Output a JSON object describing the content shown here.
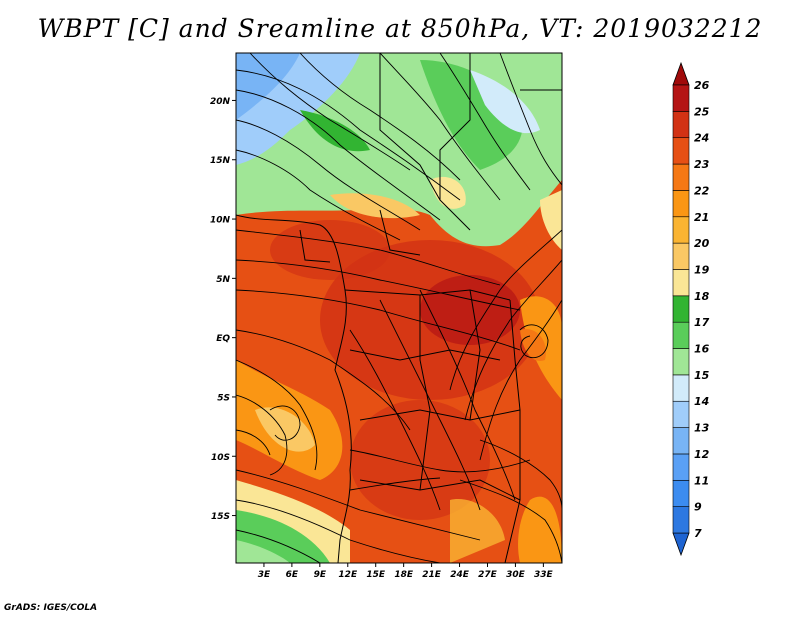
{
  "title": "WBPT [C] and Sreamline at 850hPa, VT: 2019032212",
  "credit": "GrADS: IGES/COLA",
  "map": {
    "lat_labels": [
      "20N",
      "15N",
      "10N",
      "5N",
      "EQ",
      "5S",
      "10S",
      "15S"
    ],
    "lon_labels": [
      "3E",
      "6E",
      "9E",
      "12E",
      "15E",
      "18E",
      "21E",
      "24E",
      "27E",
      "30E",
      "33E"
    ],
    "lat_range": [
      -19,
      24
    ],
    "lon_range": [
      0,
      35
    ]
  },
  "colorbar": {
    "labels": [
      "7",
      "9",
      "11",
      "12",
      "13",
      "14",
      "15",
      "16",
      "17",
      "18",
      "19",
      "20",
      "21",
      "22",
      "23",
      "24",
      "25",
      "26"
    ],
    "colors": [
      "#1e64d2",
      "#2d78e1",
      "#3c8cf0",
      "#5aa0f5",
      "#78b4f5",
      "#a0cdfa",
      "#d2ebfa",
      "#a0e696",
      "#5acd5a",
      "#32b432",
      "#fae696",
      "#fac864",
      "#fab432",
      "#fa9614",
      "#f57814",
      "#e65014",
      "#d23214",
      "#b41414",
      "#a00a0a"
    ]
  }
}
